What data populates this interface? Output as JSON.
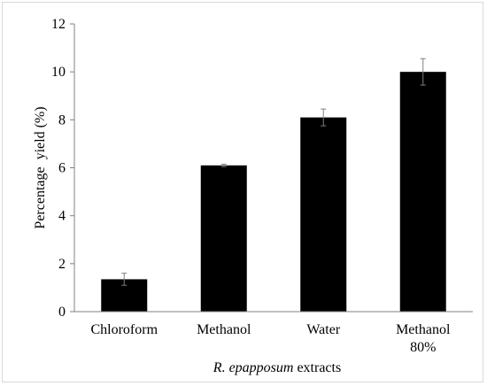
{
  "chart_data": {
    "type": "bar",
    "categories": [
      [
        "Chloroform"
      ],
      [
        "Methanol"
      ],
      [
        "Water"
      ],
      [
        "Methanol",
        "80%"
      ]
    ],
    "values": [
      1.35,
      6.1,
      8.1,
      10.0
    ],
    "errors": [
      0.25,
      0.05,
      0.35,
      0.55
    ],
    "ylabel": "Percentage  yield (%)",
    "xlabel_italic": "R. epapposum",
    "xlabel_rest": " extracts",
    "ylim": [
      0,
      12
    ],
    "yticks": [
      0,
      2,
      4,
      6,
      8,
      10,
      12
    ],
    "bar_color": "#000000",
    "axis_color": "#808080",
    "error_color": "#7f7f7f",
    "grid": false,
    "legend": "none"
  }
}
